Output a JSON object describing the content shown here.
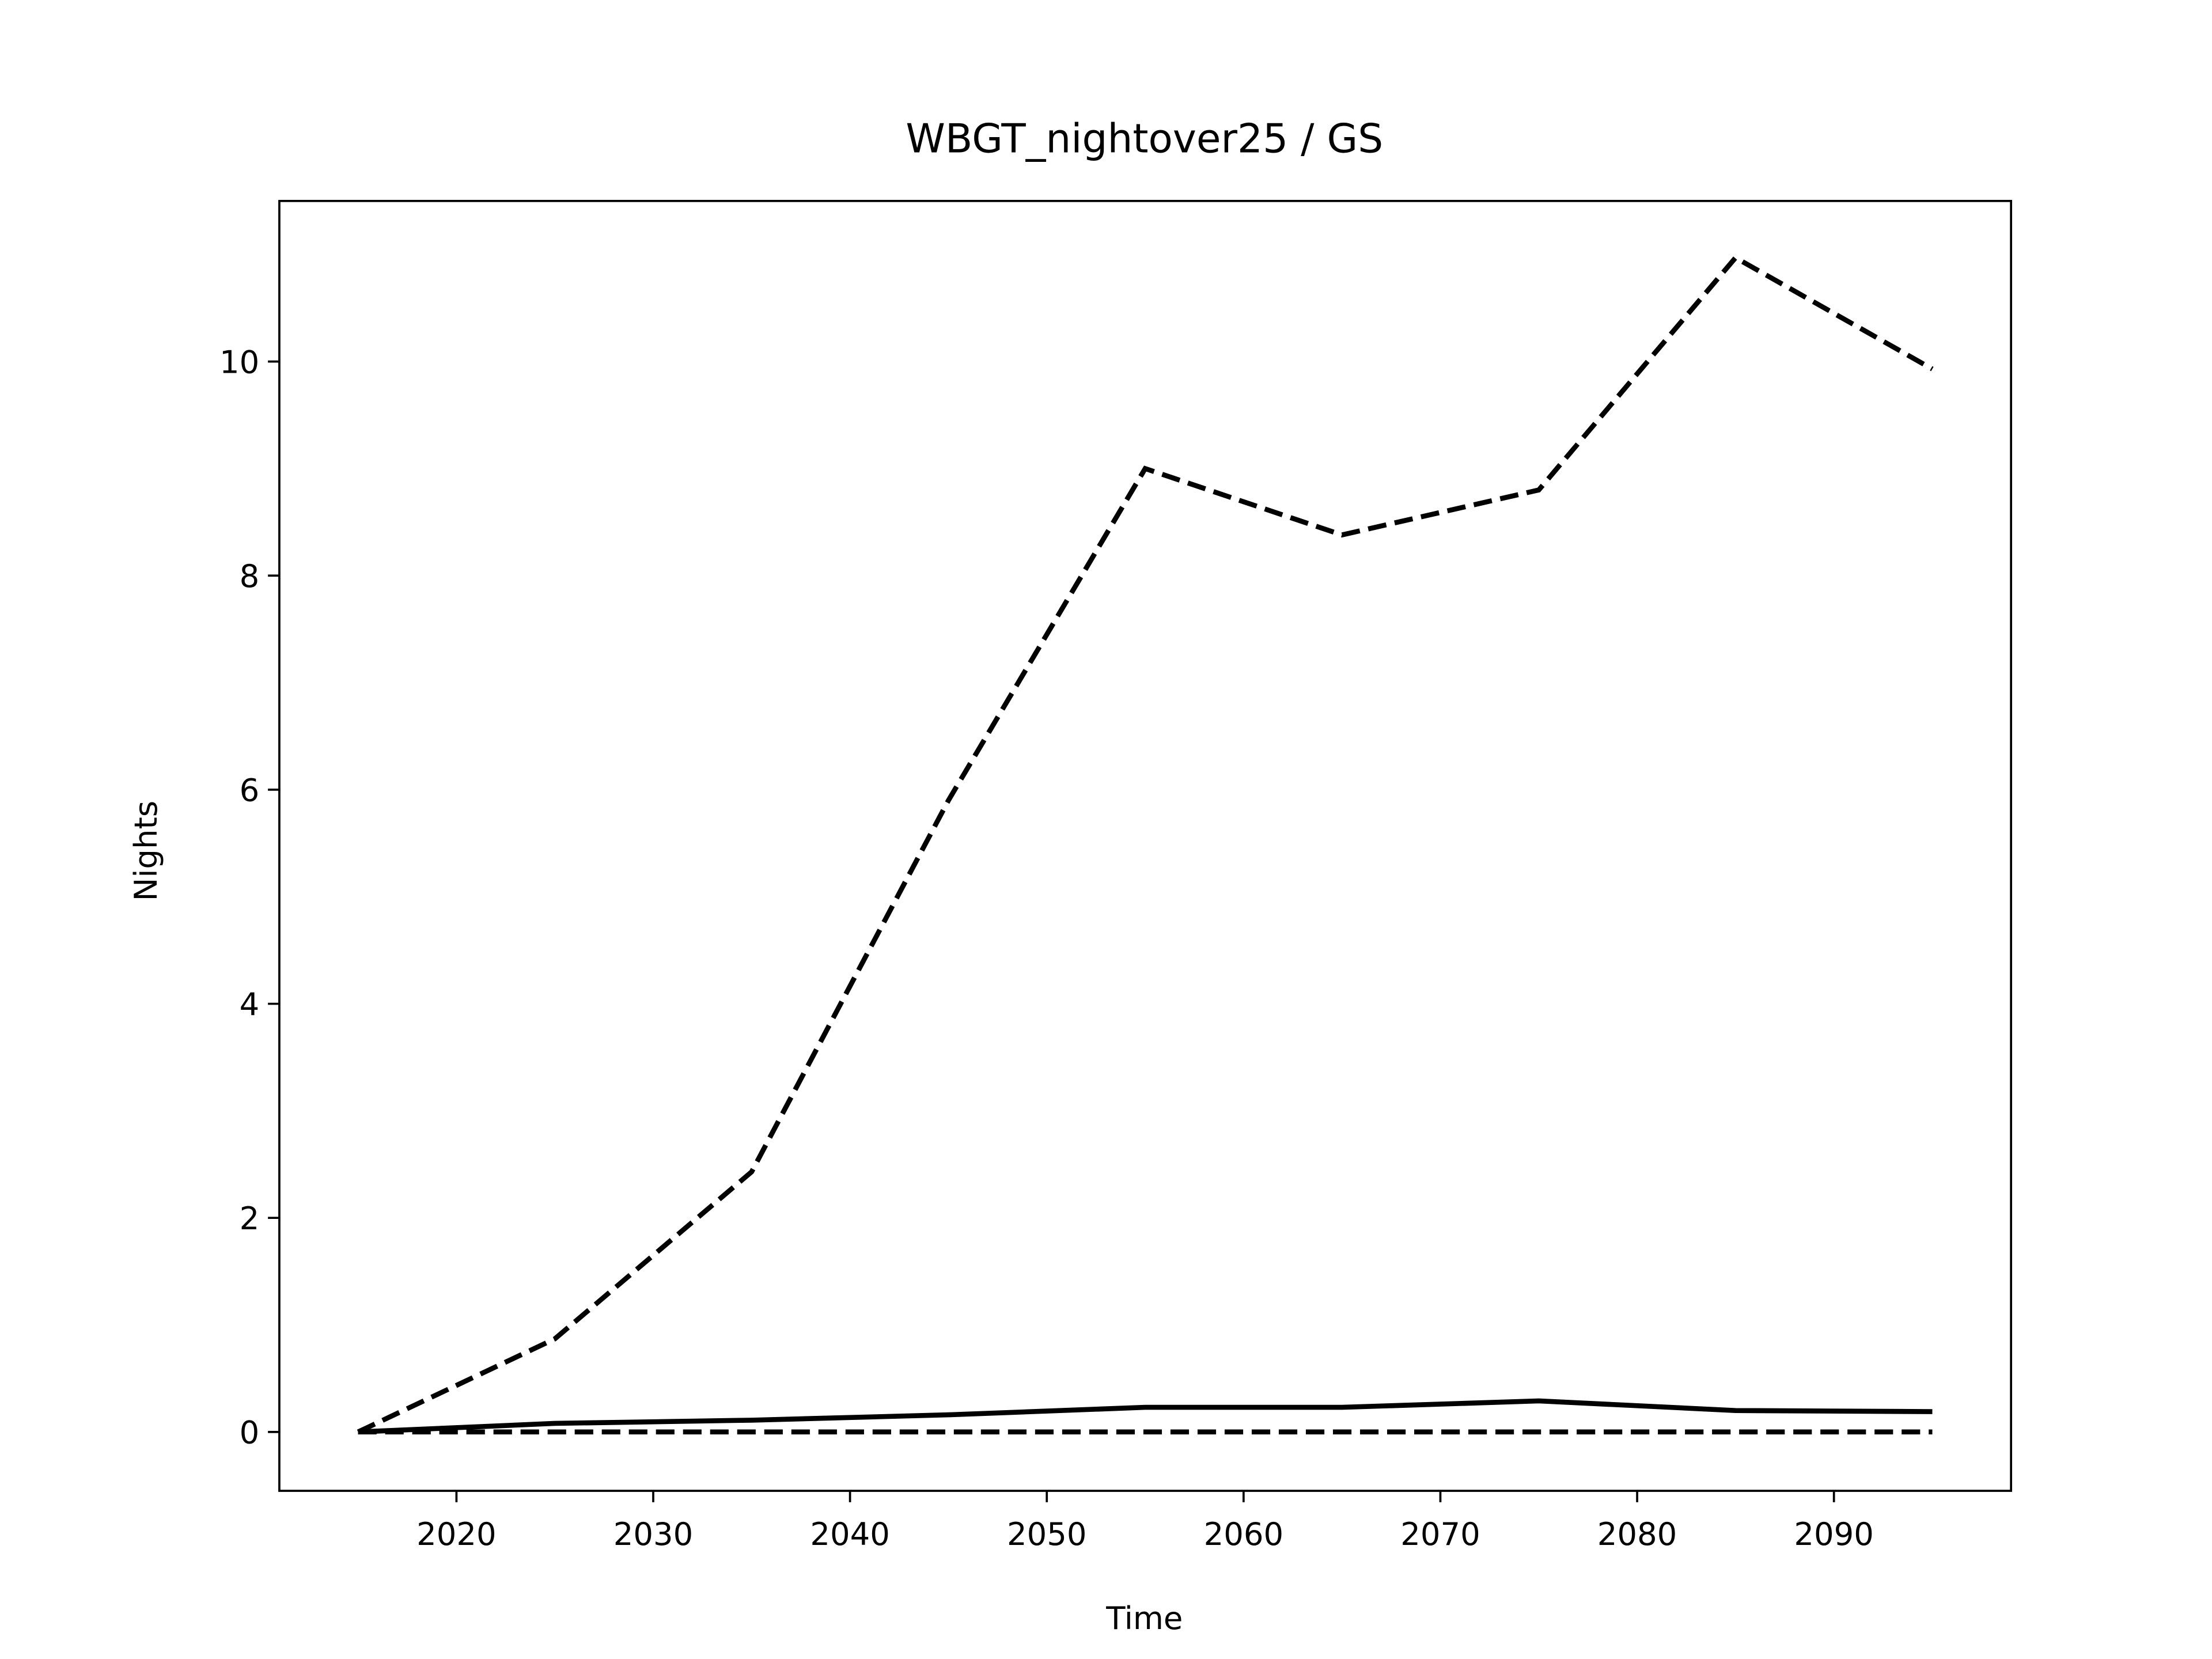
{
  "chart_data": {
    "type": "line",
    "title": "WBGT_nightover25 / GS",
    "xlabel": "Time",
    "ylabel": "Nights",
    "x": [
      2015,
      2025,
      2035,
      2045,
      2055,
      2065,
      2075,
      2085,
      2095
    ],
    "series": [
      {
        "color": "#000000",
        "linestyle": "dashed",
        "values": [
          0,
          0.87,
          2.43,
          5.9,
          9.0,
          8.38,
          8.8,
          10.97,
          9.93
        ]
      },
      {
        "color": "#000000",
        "linestyle": "solid",
        "values": [
          0,
          0.08,
          0.11,
          0.16,
          0.23,
          0.23,
          0.29,
          0.2,
          0.19
        ]
      },
      {
        "color": "#000000",
        "linestyle": "dashed",
        "values": [
          0,
          0,
          0,
          0,
          0,
          0,
          0,
          0,
          0
        ]
      }
    ],
    "xlim": [
      2011,
      2099
    ],
    "ylim": [
      -0.55,
      11.5
    ],
    "xticks": [
      2020,
      2030,
      2040,
      2050,
      2060,
      2070,
      2080,
      2090
    ],
    "yticks": [
      0,
      2,
      4,
      6,
      8,
      10
    ],
    "grid": false
  }
}
